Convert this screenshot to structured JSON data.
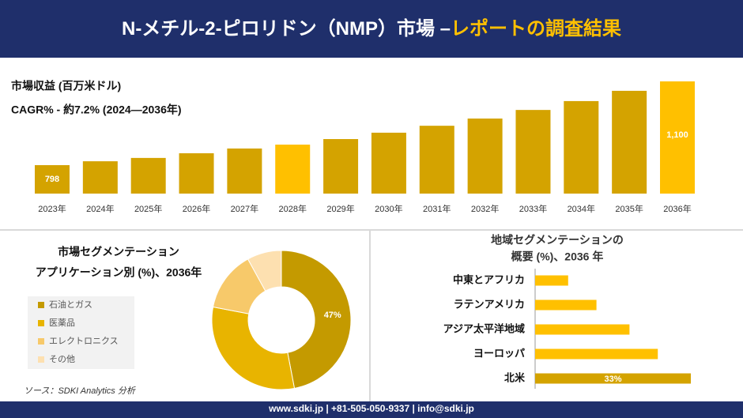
{
  "header": {
    "title": "N-メチル-2-ピロリドン（NMP）市場 –",
    "title_highlight": "レポートの調査結果"
  },
  "chart_data": [
    {
      "type": "bar",
      "title": "市場収益 (百万米ドル)",
      "subtitle": "CAGR% - 約7.2% (2024—2036年)",
      "categories": [
        "2023年",
        "2024年",
        "2025年",
        "2026年",
        "2027年",
        "2028年",
        "2029年",
        "2030年",
        "2031年",
        "2032年",
        "2033年",
        "2034年",
        "2035年",
        "2036年"
      ],
      "values": [
        798,
        812,
        824,
        841,
        858,
        872,
        892,
        915,
        940,
        966,
        997,
        1029,
        1066,
        1100
      ],
      "value_labels": [
        "798",
        null,
        null,
        null,
        null,
        null,
        null,
        null,
        null,
        null,
        null,
        null,
        null,
        "1,100"
      ],
      "colors": [
        "#d4a300",
        "#d4a300",
        "#d4a300",
        "#d4a300",
        "#d4a300",
        "#ffc000",
        "#d4a300",
        "#d4a300",
        "#d4a300",
        "#d4a300",
        "#d4a300",
        "#d4a300",
        "#d4a300",
        "#ffc000"
      ]
    },
    {
      "type": "donut",
      "title": "市場セグメンテーション",
      "subtitle": "アプリケーション別 (%)、2036年",
      "categories": [
        "石油とガス",
        "医薬品",
        "エレクトロニクス",
        "その他"
      ],
      "values": [
        47,
        31,
        14,
        8
      ],
      "value_labels": [
        "47%",
        null,
        null,
        null
      ],
      "colors": [
        "#c49a00",
        "#e8b400",
        "#f7c96a",
        "#fde0b0"
      ]
    },
    {
      "type": "hbar",
      "title": "地域セグメンテーションの",
      "subtitle": "概要 (%)、2036 年",
      "categories": [
        "中東とアフリカ",
        "ラテンアメリカ",
        "アジア太平洋地域",
        "ヨーロッパ",
        "北米"
      ],
      "values": [
        7,
        13,
        20,
        26,
        33
      ],
      "value_labels": [
        null,
        null,
        null,
        null,
        "33%"
      ],
      "colors": [
        "#ffc000",
        "#ffc000",
        "#ffc000",
        "#ffc000",
        "#d4a300"
      ]
    }
  ],
  "source": "ソース：SDKI Analytics 分析",
  "footer": "www.sdki.jp | +81-505-050-9337 | info@sdki.jp"
}
